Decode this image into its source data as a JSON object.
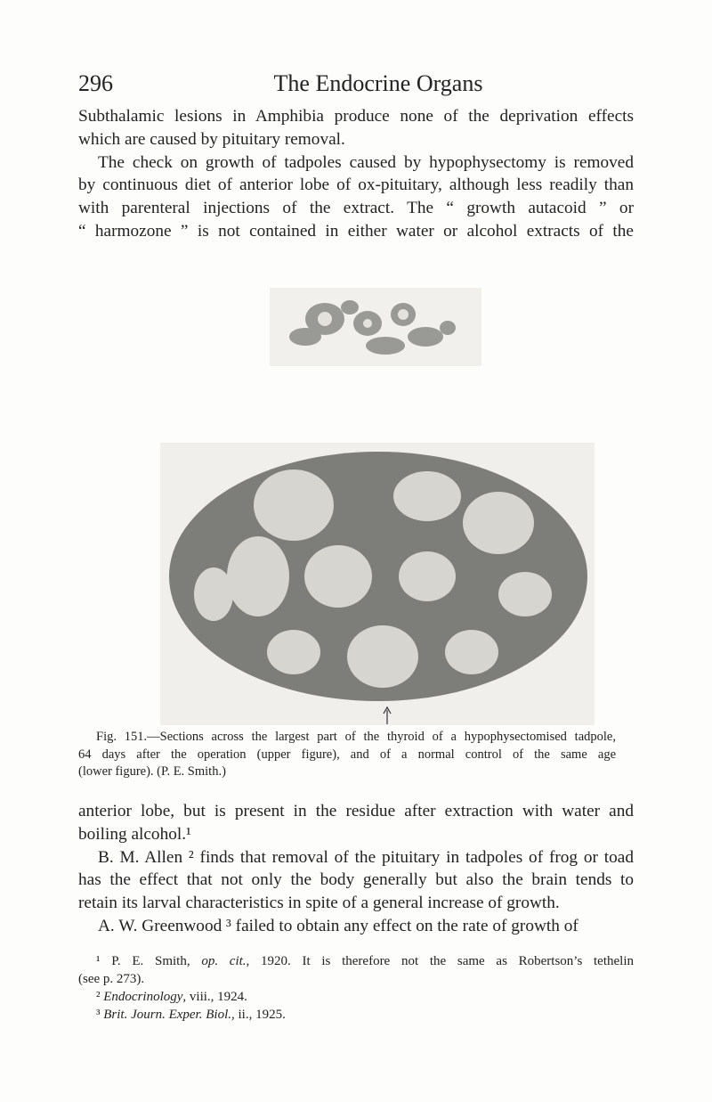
{
  "header": {
    "page_number": "296",
    "running_title": "The Endocrine Organs"
  },
  "text_before_figure": {
    "paragraphs": [
      {
        "lines": [
          "Subthalamic lesions in Amphibia produce none of the deprivation effects",
          "which are caused by pituitary removal."
        ]
      },
      {
        "lines": [
          "The check on growth of tadpoles caused by hypophysectomy is removed",
          "by continuous diet of anterior lobe of ox-pituitary, although less readily than",
          "with parenteral injections of the extract.  The “ growth autacoid ” or",
          "“ harmozone ” is not contained in either water or alcohol extracts of the"
        ]
      }
    ]
  },
  "figure": {
    "caption_lines": [
      "Fig. 151.—Sections across the largest part of the thyroid of a hypophysectomised tadpole,",
      "64 days after the operation (upper figure), and of a normal control of the same age",
      "(lower figure).  (P. E. Smith.)"
    ]
  },
  "text_after_figure": {
    "paragraphs": [
      {
        "lines": [
          "anterior lobe, but is present in the residue after extraction with water and",
          "boiling alcohol.¹"
        ]
      },
      {
        "lines": [
          "B. M. Allen ² finds that removal of the pituitary in tadpoles of frog or toad",
          "has the effect that not only the body generally but also the brain tends to",
          "retain its larval characteristics in spite of a general increase of growth."
        ]
      },
      {
        "lines": [
          "A. W. Greenwood ³ failed to obtain any effect on the rate of growth of"
        ]
      }
    ]
  },
  "footnotes": [
    {
      "lines": [
        [
          {
            "text": "¹ P. E. Smith, "
          },
          {
            "text": "op. cit.",
            "italic": true
          },
          {
            "text": ", 1920.  It is therefore not the same as Robertson’s tethelin"
          }
        ],
        [
          {
            "text": "(see p. 273)."
          }
        ]
      ]
    },
    {
      "lines": [
        [
          {
            "text": "² "
          },
          {
            "text": "Endocrinology",
            "italic": true
          },
          {
            "text": ", viii., 1924."
          }
        ]
      ]
    },
    {
      "lines": [
        [
          {
            "text": "³ "
          },
          {
            "text": "Brit. Journ. Exper. Biol.",
            "italic": true
          },
          {
            "text": ", ii., 1925."
          }
        ]
      ]
    }
  ]
}
